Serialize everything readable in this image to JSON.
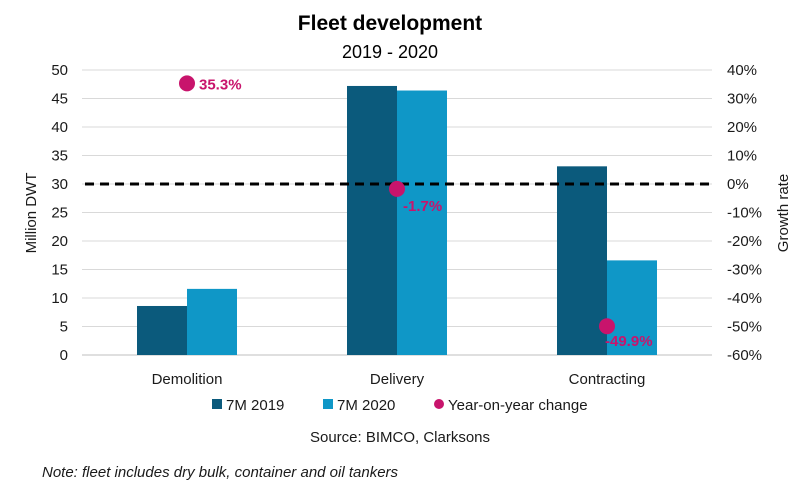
{
  "chart_data": {
    "type": "bar",
    "title": "Fleet development",
    "subtitle": "2019 - 2020",
    "categories": [
      "Demolition",
      "Delivery",
      "Contracting"
    ],
    "series": [
      {
        "name": "7M 2019",
        "values": [
          8.6,
          47.2,
          33.1
        ],
        "color": "#0b5a7c"
      },
      {
        "name": "7M 2020",
        "values": [
          11.6,
          46.4,
          16.6
        ],
        "color": "#0f97c7"
      }
    ],
    "secondary_series": {
      "name": "Year-on-year change",
      "type": "scatter",
      "values": [
        35.3,
        -1.7,
        -49.9
      ],
      "labels": [
        "35.3%",
        "-1.7%",
        "-49.9%"
      ],
      "color": "#c8146c"
    },
    "ylabel": "Million DWT",
    "ylim": [
      0,
      50
    ],
    "yticks": [
      "0",
      "5",
      "10",
      "15",
      "20",
      "25",
      "30",
      "35",
      "40",
      "45",
      "50"
    ],
    "y2label": "Growth rate",
    "y2lim": [
      -60,
      40
    ],
    "y2ticks": [
      "-60%",
      "-50%",
      "-40%",
      "-30%",
      "-20%",
      "-10%",
      "0%",
      "10%",
      "20%",
      "30%",
      "40%"
    ],
    "zero_line": {
      "value": 0,
      "style": "dashed",
      "color": "#000000"
    },
    "grid": true,
    "legend": "bottom",
    "source": "Source: BIMCO, Clarksons",
    "note": "Note: fleet includes dry bulk, container and oil tankers"
  }
}
